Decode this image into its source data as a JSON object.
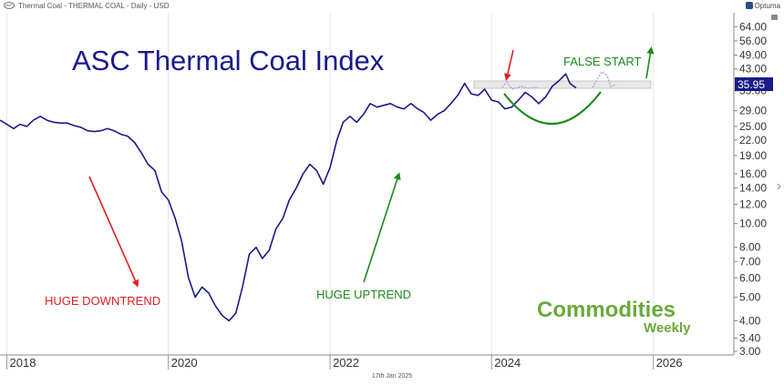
{
  "header": {
    "source_label": "Thermal Coal - THERMAL COAL - Daily - USD",
    "brand": "Optuma"
  },
  "footer": {
    "date": "17th Jan 2025"
  },
  "colors": {
    "line": "#1a1a8c",
    "title": "#1a1a8c",
    "down": "#e02020",
    "up": "#1a8a1a",
    "grid": "#e6e6e6",
    "price_tag_bg": "#1a1a8c",
    "price_tag_text": "#ffffff",
    "logo_green": "#6aaa3a",
    "logo_light": "#9ccf5c"
  },
  "chart_data": {
    "type": "line",
    "title": "ASC Thermal Coal Index",
    "y_scale": "log",
    "ylim": [
      2.9,
      73
    ],
    "xlim": [
      "2017-12-01",
      "2026-12-31"
    ],
    "x_ticks": [
      "2018",
      "2020",
      "2022",
      "2024",
      "2026"
    ],
    "y_ticks": [
      "3.00",
      "3.40",
      "4.00",
      "5.00",
      "6.00",
      "7.00",
      "8.00",
      "10.00",
      "12.00",
      "14.00",
      "16.00",
      "19.00",
      "22.00",
      "25.00",
      "29.00",
      "35.00",
      "43.00",
      "49.00",
      "56.00",
      "64.00"
    ],
    "last_value_label": "35.95",
    "series": [
      {
        "points": [
          [
            "2017-12-01",
            26.5
          ],
          [
            "2018-01-01",
            25.5
          ],
          [
            "2018-02-01",
            24.5
          ],
          [
            "2018-03-01",
            25.5
          ],
          [
            "2018-04-01",
            25.0
          ],
          [
            "2018-05-01",
            26.5
          ],
          [
            "2018-06-01",
            27.5
          ],
          [
            "2018-07-01",
            26.5
          ],
          [
            "2018-08-01",
            26.0
          ],
          [
            "2018-09-01",
            25.8
          ],
          [
            "2018-10-01",
            25.8
          ],
          [
            "2018-11-01",
            25.2
          ],
          [
            "2018-12-01",
            24.8
          ],
          [
            "2019-01-01",
            24.0
          ],
          [
            "2019-02-01",
            23.8
          ],
          [
            "2019-03-01",
            24.0
          ],
          [
            "2019-04-01",
            24.5
          ],
          [
            "2019-05-01",
            24.0
          ],
          [
            "2019-06-01",
            23.2
          ],
          [
            "2019-07-01",
            22.8
          ],
          [
            "2019-08-01",
            21.5
          ],
          [
            "2019-09-01",
            19.5
          ],
          [
            "2019-10-01",
            17.5
          ],
          [
            "2019-11-01",
            16.5
          ],
          [
            "2019-12-01",
            13.5
          ],
          [
            "2020-01-01",
            12.5
          ],
          [
            "2020-02-01",
            10.5
          ],
          [
            "2020-03-01",
            8.5
          ],
          [
            "2020-04-01",
            6.0
          ],
          [
            "2020-05-01",
            5.0
          ],
          [
            "2020-06-01",
            5.5
          ],
          [
            "2020-07-01",
            5.2
          ],
          [
            "2020-08-01",
            4.6
          ],
          [
            "2020-09-01",
            4.2
          ],
          [
            "2020-10-01",
            4.0
          ],
          [
            "2020-11-01",
            4.3
          ],
          [
            "2020-12-01",
            5.5
          ],
          [
            "2021-01-01",
            7.5
          ],
          [
            "2021-02-01",
            8.0
          ],
          [
            "2021-03-01",
            7.2
          ],
          [
            "2021-04-01",
            7.8
          ],
          [
            "2021-05-01",
            9.5
          ],
          [
            "2021-06-01",
            10.5
          ],
          [
            "2021-07-01",
            12.5
          ],
          [
            "2021-08-01",
            14.0
          ],
          [
            "2021-09-01",
            16.0
          ],
          [
            "2021-10-01",
            17.5
          ],
          [
            "2021-11-01",
            16.5
          ],
          [
            "2021-12-01",
            14.5
          ],
          [
            "2022-01-01",
            17.0
          ],
          [
            "2022-02-01",
            22.0
          ],
          [
            "2022-03-01",
            26.0
          ],
          [
            "2022-04-01",
            27.5
          ],
          [
            "2022-05-01",
            26.0
          ],
          [
            "2022-06-01",
            28.0
          ],
          [
            "2022-07-01",
            31.0
          ],
          [
            "2022-08-01",
            30.0
          ],
          [
            "2022-09-01",
            30.5
          ],
          [
            "2022-10-01",
            31.0
          ],
          [
            "2022-11-01",
            30.0
          ],
          [
            "2022-12-01",
            29.5
          ],
          [
            "2023-01-01",
            31.0
          ],
          [
            "2023-02-01",
            29.5
          ],
          [
            "2023-03-01",
            28.5
          ],
          [
            "2023-04-01",
            26.5
          ],
          [
            "2023-05-01",
            28.0
          ],
          [
            "2023-06-01",
            29.0
          ],
          [
            "2023-07-01",
            31.0
          ],
          [
            "2023-08-01",
            33.5
          ],
          [
            "2023-09-01",
            37.5
          ],
          [
            "2023-10-01",
            34.0
          ],
          [
            "2023-11-01",
            33.5
          ],
          [
            "2023-12-01",
            35.5
          ],
          [
            "2024-01-01",
            32.0
          ],
          [
            "2024-02-01",
            31.5
          ],
          [
            "2024-03-01",
            29.5
          ],
          [
            "2024-04-01",
            30.0
          ],
          [
            "2024-05-01",
            32.0
          ],
          [
            "2024-06-01",
            34.5
          ],
          [
            "2024-07-01",
            33.0
          ],
          [
            "2024-08-01",
            31.0
          ],
          [
            "2024-09-01",
            33.0
          ],
          [
            "2024-10-01",
            36.5
          ],
          [
            "2024-11-01",
            38.5
          ],
          [
            "2024-12-01",
            41.0
          ],
          [
            "2024-12-20",
            37.5
          ],
          [
            "2025-01-17",
            35.95
          ]
        ]
      }
    ],
    "annotations": [
      {
        "text": "HUGE DOWNTREND",
        "color": "down"
      },
      {
        "text": "HUGE UPTREND",
        "color": "up"
      },
      {
        "text": "FALSE START",
        "color": "up"
      }
    ],
    "watermark": {
      "line1": "Commodities",
      "line2": "Weekly"
    }
  }
}
